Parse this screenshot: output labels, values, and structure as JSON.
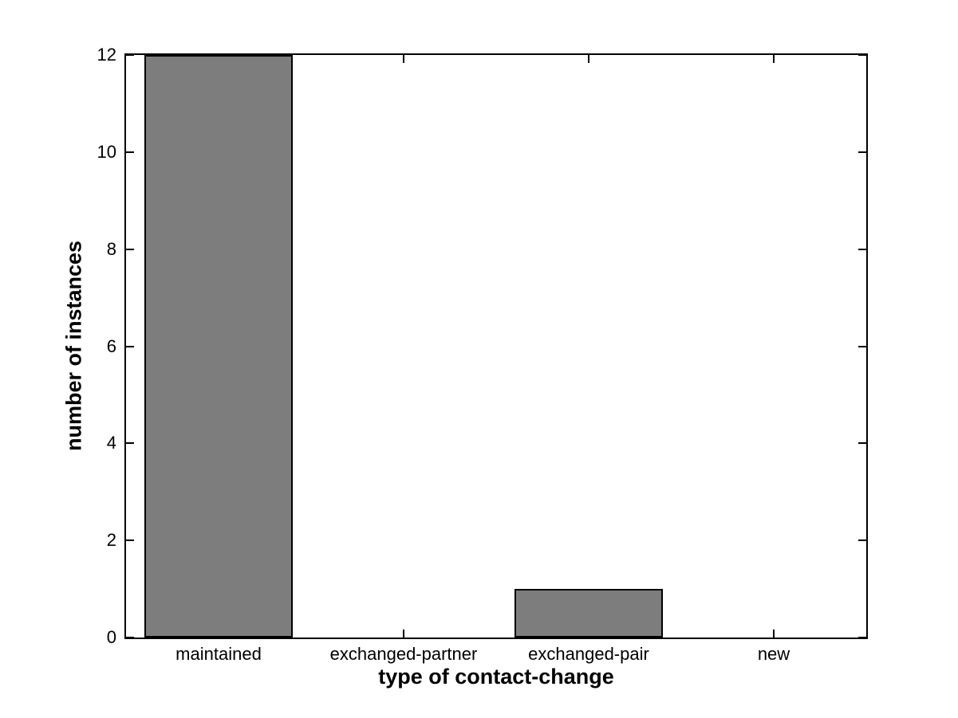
{
  "chart_data": {
    "type": "bar",
    "categories": [
      "maintained",
      "exchanged-partner",
      "exchanged-pair",
      "new"
    ],
    "values": [
      12,
      0,
      1,
      0
    ],
    "xlabel": "type of contact-change",
    "ylabel": "number of instances",
    "ylim": [
      0,
      12
    ],
    "yticks": [
      0,
      2,
      4,
      6,
      8,
      10,
      12
    ],
    "bar_color": "#7d7d7d",
    "bar_edge_color": "#000000",
    "axis_color": "#000000",
    "background_color": "#ffffff",
    "grid": false,
    "box": true,
    "tick_direction": "in",
    "bar_width_fraction": 0.8
  }
}
